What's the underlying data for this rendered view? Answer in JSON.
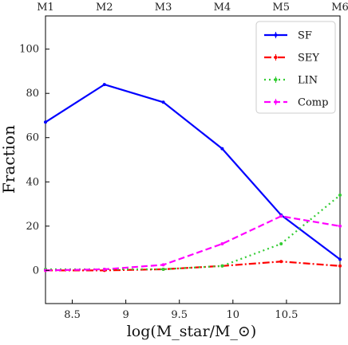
{
  "chart_data": {
    "type": "line",
    "title": "",
    "xlabel": "log(M_star/M_⊙)",
    "ylabel": "Fraction",
    "xlim": [
      8.25,
      11.0
    ],
    "ylim": [
      -15,
      115
    ],
    "xticks": [
      8.5,
      9,
      9.5,
      10,
      10.5
    ],
    "xtick_labels": [
      "8.5",
      "9",
      "9.5",
      "10",
      "10.5"
    ],
    "yticks": [
      0,
      20,
      40,
      60,
      80,
      100
    ],
    "ytick_labels": [
      "0",
      "20",
      "40",
      "60",
      "80",
      "100"
    ],
    "top_axis": {
      "ticks": [
        8.25,
        8.8,
        9.35,
        9.9,
        10.45,
        11.0
      ],
      "labels": [
        "M1",
        "M2",
        "M3",
        "M4",
        "M5",
        "M6"
      ]
    },
    "x": [
      8.25,
      8.8,
      9.35,
      9.9,
      10.45,
      11.0
    ],
    "series": [
      {
        "name": "SF",
        "values": [
          67,
          84,
          76,
          55,
          25,
          5
        ],
        "color": "#0000ff",
        "style": "solid"
      },
      {
        "name": "SEY",
        "values": [
          0,
          0,
          0.5,
          2,
          4,
          2
        ],
        "color": "#ff0000",
        "style": "dashdot"
      },
      {
        "name": "LIN",
        "values": [
          0.5,
          0.5,
          0.5,
          2,
          12,
          34
        ],
        "color": "#33cc33",
        "style": "dotted"
      },
      {
        "name": "Comp",
        "values": [
          0,
          0.5,
          2.5,
          12,
          24.5,
          20
        ],
        "color": "#ff00ff",
        "style": "dashed"
      }
    ],
    "legend_position": "top-right",
    "grid": false
  }
}
